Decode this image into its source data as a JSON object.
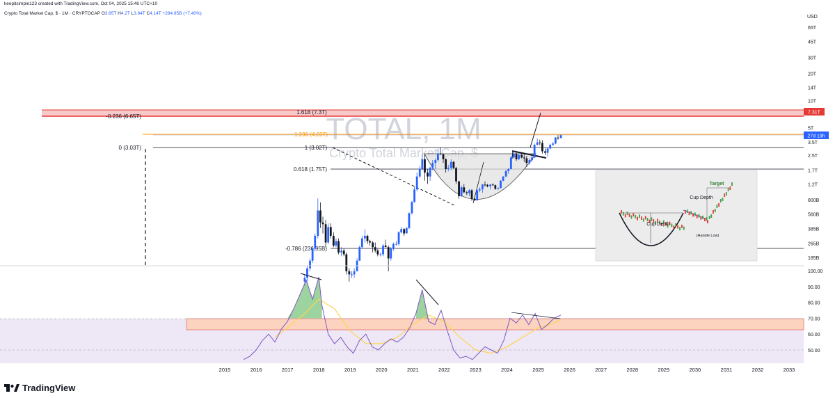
{
  "header": {
    "attribution": "keepitsimple123 created with TradingView.com, Oct 04, 2025 15:46 UTC+10"
  },
  "legend": {
    "symbol": "Crypto Total Market Cap, $ · 1M · CRYPTOCAP",
    "open_label": "O",
    "open": "3.85T",
    "high_label": "H",
    "high": "4.2T",
    "low_label": "L",
    "low": "3.84T",
    "close_label": "C",
    "close": "4.14T",
    "change": "+284.95B (+7.40%)"
  },
  "watermark": {
    "title": "TOTAL, 1M",
    "subtitle": "Crypto Total Market Cap, $"
  },
  "price_axis": {
    "currency": "USD",
    "last_price_label": "27d 19h",
    "target_price_label": "7.31T"
  },
  "fib_levels": [
    {
      "label": "1.618 (7.3T)"
    },
    {
      "label": "-0.236 (6.65T)"
    },
    {
      "label": "1.236 (4.23T)"
    },
    {
      "label": "0 (3.03T)"
    },
    {
      "label": "1 (3.02T)"
    },
    {
      "label": "0.618 (1.75T)"
    },
    {
      "label": "-0.786 (236.95B)"
    }
  ],
  "inset": {
    "cup_depth_1": "Cup Depth",
    "cup_depth_2": "Cup Depth",
    "target": "Target",
    "handle_low": "(Handle Low)"
  },
  "footer": {
    "brand": "TradingView"
  },
  "colors": {
    "bull": "#2962ff",
    "bear": "#131722",
    "fib_red": "#e53935",
    "fib_orange": "#ff9800",
    "rsi_line": "#7e57c2",
    "rsi_ma": "#ffd54f",
    "rsi_band": "#ede7f6",
    "orange_zone": "#fbd3bf"
  },
  "chart_data": [
    {
      "type": "candlestick",
      "title": "TOTAL, 1M",
      "y_scale": "log",
      "y_ticks": [
        "65T",
        "45T",
        "30T",
        "20T",
        "14T",
        "10T",
        "5T",
        "3.5T",
        "2.5T",
        "1.7T",
        "1.2T",
        "800B",
        "560B",
        "385B",
        "265B",
        "185B"
      ],
      "x_ticks": [
        "2015",
        "2016",
        "2017",
        "2018",
        "2019",
        "2020",
        "2021",
        "2022",
        "2023",
        "2024",
        "2025",
        "2026",
        "2027",
        "2028",
        "2029",
        "2030",
        "2031",
        "2032",
        "2033"
      ],
      "candles": [
        {
          "t": 2017.55,
          "o": 0.1,
          "h": 0.12,
          "l": 0.09,
          "c": 0.11
        },
        {
          "t": 2017.63,
          "o": 0.11,
          "h": 0.15,
          "l": 0.1,
          "c": 0.14
        },
        {
          "t": 2017.72,
          "o": 0.14,
          "h": 0.18,
          "l": 0.13,
          "c": 0.17
        },
        {
          "t": 2017.8,
          "o": 0.17,
          "h": 0.24,
          "l": 0.16,
          "c": 0.23
        },
        {
          "t": 2017.88,
          "o": 0.23,
          "h": 0.34,
          "l": 0.22,
          "c": 0.32
        },
        {
          "t": 2017.97,
          "o": 0.32,
          "h": 0.83,
          "l": 0.3,
          "c": 0.61
        },
        {
          "t": 2018.05,
          "o": 0.61,
          "h": 0.75,
          "l": 0.39,
          "c": 0.45
        },
        {
          "t": 2018.13,
          "o": 0.45,
          "h": 0.52,
          "l": 0.34,
          "c": 0.43
        },
        {
          "t": 2018.22,
          "o": 0.43,
          "h": 0.48,
          "l": 0.24,
          "c": 0.27
        },
        {
          "t": 2018.3,
          "o": 0.27,
          "h": 0.44,
          "l": 0.26,
          "c": 0.4
        },
        {
          "t": 2018.38,
          "o": 0.4,
          "h": 0.44,
          "l": 0.3,
          "c": 0.32
        },
        {
          "t": 2018.47,
          "o": 0.32,
          "h": 0.35,
          "l": 0.24,
          "c": 0.25
        },
        {
          "t": 2018.55,
          "o": 0.25,
          "h": 0.3,
          "l": 0.24,
          "c": 0.28
        },
        {
          "t": 2018.63,
          "o": 0.28,
          "h": 0.3,
          "l": 0.2,
          "c": 0.21
        },
        {
          "t": 2018.72,
          "o": 0.21,
          "h": 0.24,
          "l": 0.19,
          "c": 0.22
        },
        {
          "t": 2018.8,
          "o": 0.22,
          "h": 0.23,
          "l": 0.19,
          "c": 0.2
        },
        {
          "t": 2018.88,
          "o": 0.2,
          "h": 0.21,
          "l": 0.12,
          "c": 0.13
        },
        {
          "t": 2018.97,
          "o": 0.13,
          "h": 0.14,
          "l": 0.1,
          "c": 0.12
        },
        {
          "t": 2019.05,
          "o": 0.12,
          "h": 0.13,
          "l": 0.11,
          "c": 0.12
        },
        {
          "t": 2019.13,
          "o": 0.12,
          "h": 0.14,
          "l": 0.11,
          "c": 0.13
        },
        {
          "t": 2019.22,
          "o": 0.13,
          "h": 0.18,
          "l": 0.13,
          "c": 0.17
        },
        {
          "t": 2019.3,
          "o": 0.17,
          "h": 0.25,
          "l": 0.17,
          "c": 0.24
        },
        {
          "t": 2019.38,
          "o": 0.24,
          "h": 0.32,
          "l": 0.23,
          "c": 0.3
        },
        {
          "t": 2019.47,
          "o": 0.3,
          "h": 0.38,
          "l": 0.27,
          "c": 0.32
        },
        {
          "t": 2019.55,
          "o": 0.32,
          "h": 0.33,
          "l": 0.26,
          "c": 0.28
        },
        {
          "t": 2019.63,
          "o": 0.28,
          "h": 0.29,
          "l": 0.25,
          "c": 0.27
        },
        {
          "t": 2019.72,
          "o": 0.27,
          "h": 0.28,
          "l": 0.21,
          "c": 0.24
        },
        {
          "t": 2019.8,
          "o": 0.24,
          "h": 0.27,
          "l": 0.21,
          "c": 0.22
        },
        {
          "t": 2019.88,
          "o": 0.22,
          "h": 0.23,
          "l": 0.19,
          "c": 0.2
        },
        {
          "t": 2019.97,
          "o": 0.2,
          "h": 0.21,
          "l": 0.19,
          "c": 0.2
        },
        {
          "t": 2020.05,
          "o": 0.2,
          "h": 0.26,
          "l": 0.19,
          "c": 0.25
        },
        {
          "t": 2020.13,
          "o": 0.25,
          "h": 0.29,
          "l": 0.24,
          "c": 0.24
        },
        {
          "t": 2020.22,
          "o": 0.24,
          "h": 0.25,
          "l": 0.13,
          "c": 0.18
        },
        {
          "t": 2020.3,
          "o": 0.18,
          "h": 0.24,
          "l": 0.17,
          "c": 0.23
        },
        {
          "t": 2020.38,
          "o": 0.23,
          "h": 0.27,
          "l": 0.22,
          "c": 0.26
        },
        {
          "t": 2020.47,
          "o": 0.26,
          "h": 0.28,
          "l": 0.25,
          "c": 0.26
        },
        {
          "t": 2020.55,
          "o": 0.26,
          "h": 0.36,
          "l": 0.25,
          "c": 0.35
        },
        {
          "t": 2020.63,
          "o": 0.35,
          "h": 0.4,
          "l": 0.34,
          "c": 0.38
        },
        {
          "t": 2020.72,
          "o": 0.38,
          "h": 0.39,
          "l": 0.32,
          "c": 0.34
        },
        {
          "t": 2020.8,
          "o": 0.34,
          "h": 0.4,
          "l": 0.34,
          "c": 0.39
        },
        {
          "t": 2020.88,
          "o": 0.39,
          "h": 0.58,
          "l": 0.38,
          "c": 0.57
        },
        {
          "t": 2020.97,
          "o": 0.57,
          "h": 0.78,
          "l": 0.55,
          "c": 0.76
        },
        {
          "t": 2021.05,
          "o": 0.76,
          "h": 1.12,
          "l": 0.74,
          "c": 1.04
        },
        {
          "t": 2021.13,
          "o": 1.04,
          "h": 1.6,
          "l": 1.0,
          "c": 1.45
        },
        {
          "t": 2021.22,
          "o": 1.45,
          "h": 1.9,
          "l": 1.4,
          "c": 1.75
        },
        {
          "t": 2021.3,
          "o": 1.75,
          "h": 2.55,
          "l": 1.7,
          "c": 2.25
        },
        {
          "t": 2021.38,
          "o": 2.25,
          "h": 2.58,
          "l": 1.3,
          "c": 1.6
        },
        {
          "t": 2021.47,
          "o": 1.6,
          "h": 1.75,
          "l": 1.2,
          "c": 1.45
        },
        {
          "t": 2021.55,
          "o": 1.45,
          "h": 1.85,
          "l": 1.3,
          "c": 1.82
        },
        {
          "t": 2021.63,
          "o": 1.82,
          "h": 2.2,
          "l": 1.7,
          "c": 2.05
        },
        {
          "t": 2021.72,
          "o": 2.05,
          "h": 2.3,
          "l": 1.75,
          "c": 2.2
        },
        {
          "t": 2021.8,
          "o": 2.2,
          "h": 2.95,
          "l": 2.1,
          "c": 2.6
        },
        {
          "t": 2021.88,
          "o": 2.6,
          "h": 3.02,
          "l": 2.5,
          "c": 2.55
        },
        {
          "t": 2021.97,
          "o": 2.55,
          "h": 2.6,
          "l": 2.05,
          "c": 2.25
        },
        {
          "t": 2022.05,
          "o": 2.25,
          "h": 2.3,
          "l": 1.6,
          "c": 1.75
        },
        {
          "t": 2022.13,
          "o": 1.75,
          "h": 1.95,
          "l": 1.65,
          "c": 1.8
        },
        {
          "t": 2022.22,
          "o": 1.8,
          "h": 2.25,
          "l": 1.7,
          "c": 2.1
        },
        {
          "t": 2022.3,
          "o": 2.1,
          "h": 2.15,
          "l": 1.75,
          "c": 1.8
        },
        {
          "t": 2022.38,
          "o": 1.8,
          "h": 1.85,
          "l": 1.2,
          "c": 1.28
        },
        {
          "t": 2022.47,
          "o": 1.28,
          "h": 1.3,
          "l": 0.82,
          "c": 0.88
        },
        {
          "t": 2022.55,
          "o": 0.88,
          "h": 1.15,
          "l": 0.86,
          "c": 1.1
        },
        {
          "t": 2022.63,
          "o": 1.1,
          "h": 1.2,
          "l": 0.95,
          "c": 0.97
        },
        {
          "t": 2022.72,
          "o": 0.97,
          "h": 1.0,
          "l": 0.9,
          "c": 0.95
        },
        {
          "t": 2022.8,
          "o": 0.95,
          "h": 1.05,
          "l": 0.88,
          "c": 1.02
        },
        {
          "t": 2022.88,
          "o": 1.02,
          "h": 1.05,
          "l": 0.78,
          "c": 0.82
        },
        {
          "t": 2022.97,
          "o": 0.82,
          "h": 0.86,
          "l": 0.78,
          "c": 0.79
        },
        {
          "t": 2023.05,
          "o": 0.79,
          "h": 1.05,
          "l": 0.78,
          "c": 1.02
        },
        {
          "t": 2023.13,
          "o": 1.02,
          "h": 1.1,
          "l": 0.97,
          "c": 1.05
        },
        {
          "t": 2023.22,
          "o": 1.05,
          "h": 1.2,
          "l": 0.96,
          "c": 1.18
        },
        {
          "t": 2023.3,
          "o": 1.18,
          "h": 1.28,
          "l": 1.12,
          "c": 1.17
        },
        {
          "t": 2023.38,
          "o": 1.17,
          "h": 1.2,
          "l": 1.1,
          "c": 1.13
        },
        {
          "t": 2023.47,
          "o": 1.13,
          "h": 1.2,
          "l": 1.04,
          "c": 1.18
        },
        {
          "t": 2023.55,
          "o": 1.18,
          "h": 1.22,
          "l": 1.14,
          "c": 1.16
        },
        {
          "t": 2023.63,
          "o": 1.16,
          "h": 1.18,
          "l": 1.03,
          "c": 1.06
        },
        {
          "t": 2023.72,
          "o": 1.06,
          "h": 1.1,
          "l": 1.03,
          "c": 1.08
        },
        {
          "t": 2023.8,
          "o": 1.08,
          "h": 1.32,
          "l": 1.07,
          "c": 1.3
        },
        {
          "t": 2023.88,
          "o": 1.3,
          "h": 1.46,
          "l": 1.28,
          "c": 1.45
        },
        {
          "t": 2023.97,
          "o": 1.45,
          "h": 1.72,
          "l": 1.42,
          "c": 1.66
        },
        {
          "t": 2024.05,
          "o": 1.66,
          "h": 1.8,
          "l": 1.55,
          "c": 1.75
        },
        {
          "t": 2024.13,
          "o": 1.75,
          "h": 2.45,
          "l": 1.74,
          "c": 2.35
        },
        {
          "t": 2024.22,
          "o": 2.35,
          "h": 2.8,
          "l": 2.3,
          "c": 2.6
        },
        {
          "t": 2024.3,
          "o": 2.6,
          "h": 2.7,
          "l": 2.15,
          "c": 2.25
        },
        {
          "t": 2024.38,
          "o": 2.25,
          "h": 2.6,
          "l": 2.2,
          "c": 2.5
        },
        {
          "t": 2024.47,
          "o": 2.5,
          "h": 2.65,
          "l": 2.3,
          "c": 2.35
        },
        {
          "t": 2024.55,
          "o": 2.35,
          "h": 2.55,
          "l": 2.1,
          "c": 2.3
        },
        {
          "t": 2024.63,
          "o": 2.3,
          "h": 2.45,
          "l": 1.85,
          "c": 2.05
        },
        {
          "t": 2024.72,
          "o": 2.05,
          "h": 2.3,
          "l": 1.95,
          "c": 2.2
        },
        {
          "t": 2024.8,
          "o": 2.2,
          "h": 2.45,
          "l": 2.1,
          "c": 2.35
        },
        {
          "t": 2024.88,
          "o": 2.35,
          "h": 3.35,
          "l": 2.3,
          "c": 3.25
        },
        {
          "t": 2024.97,
          "o": 3.25,
          "h": 3.8,
          "l": 3.2,
          "c": 3.45
        },
        {
          "t": 2025.05,
          "o": 3.45,
          "h": 3.7,
          "l": 3.2,
          "c": 3.4
        },
        {
          "t": 2025.13,
          "o": 3.4,
          "h": 3.65,
          "l": 2.6,
          "c": 2.75
        },
        {
          "t": 2025.22,
          "o": 2.75,
          "h": 2.95,
          "l": 2.5,
          "c": 2.65
        },
        {
          "t": 2025.3,
          "o": 2.65,
          "h": 3.05,
          "l": 2.4,
          "c": 2.95
        },
        {
          "t": 2025.38,
          "o": 2.95,
          "h": 3.35,
          "l": 2.9,
          "c": 3.25
        },
        {
          "t": 2025.47,
          "o": 3.25,
          "h": 3.5,
          "l": 3.15,
          "c": 3.35
        },
        {
          "t": 2025.55,
          "o": 3.35,
          "h": 3.95,
          "l": 3.3,
          "c": 3.9
        },
        {
          "t": 2025.63,
          "o": 3.9,
          "h": 4.15,
          "l": 3.7,
          "c": 3.85
        },
        {
          "t": 2025.72,
          "o": 3.85,
          "h": 4.2,
          "l": 3.84,
          "c": 4.14
        }
      ]
    },
    {
      "type": "line",
      "title": "RSI",
      "y_ticks": [
        "100.00",
        "90.00",
        "80.00",
        "70.00",
        "60.00",
        "50.00"
      ],
      "series": [
        {
          "x": [
            2015.6,
            2015.8,
            2016.0,
            2016.2,
            2016.4,
            2016.6,
            2016.8,
            2017.0,
            2017.2,
            2017.4,
            2017.6,
            2017.8,
            2018.0,
            2018.1,
            2018.3,
            2018.5,
            2018.7,
            2018.9,
            2019.1,
            2019.3,
            2019.5,
            2019.7,
            2019.9,
            2020.1,
            2020.3,
            2020.5,
            2020.7,
            2020.9,
            2021.1,
            2021.3,
            2021.5,
            2021.7,
            2021.9,
            2022.1,
            2022.3,
            2022.5,
            2022.7,
            2022.9,
            2023.1,
            2023.3,
            2023.5,
            2023.7,
            2023.9,
            2024.1,
            2024.3,
            2024.5,
            2024.7,
            2024.9,
            2025.1,
            2025.3,
            2025.5,
            2025.72
          ],
          "values": [
            44,
            46,
            50,
            56,
            60,
            55,
            63,
            68,
            76,
            85,
            94,
            82,
            96,
            78,
            60,
            54,
            58,
            52,
            48,
            56,
            60,
            52,
            50,
            54,
            57,
            55,
            58,
            64,
            73,
            88,
            68,
            66,
            75,
            62,
            50,
            45,
            46,
            44,
            48,
            52,
            50,
            48,
            56,
            70,
            67,
            72,
            66,
            73,
            63,
            66,
            70,
            72
          ]
        },
        {
          "x": [
            2016.6,
            2017.0,
            2017.5,
            2018.0,
            2018.5,
            2019.0,
            2019.5,
            2020.0,
            2020.5,
            2021.0,
            2021.5,
            2022.0,
            2022.5,
            2023.0,
            2023.5,
            2024.0,
            2024.5,
            2025.0,
            2025.5,
            2025.72
          ],
          "values": [
            58,
            64,
            72,
            82,
            76,
            62,
            54,
            54,
            58,
            66,
            72,
            68,
            58,
            50,
            48,
            52,
            58,
            64,
            67,
            69
          ]
        }
      ]
    }
  ]
}
